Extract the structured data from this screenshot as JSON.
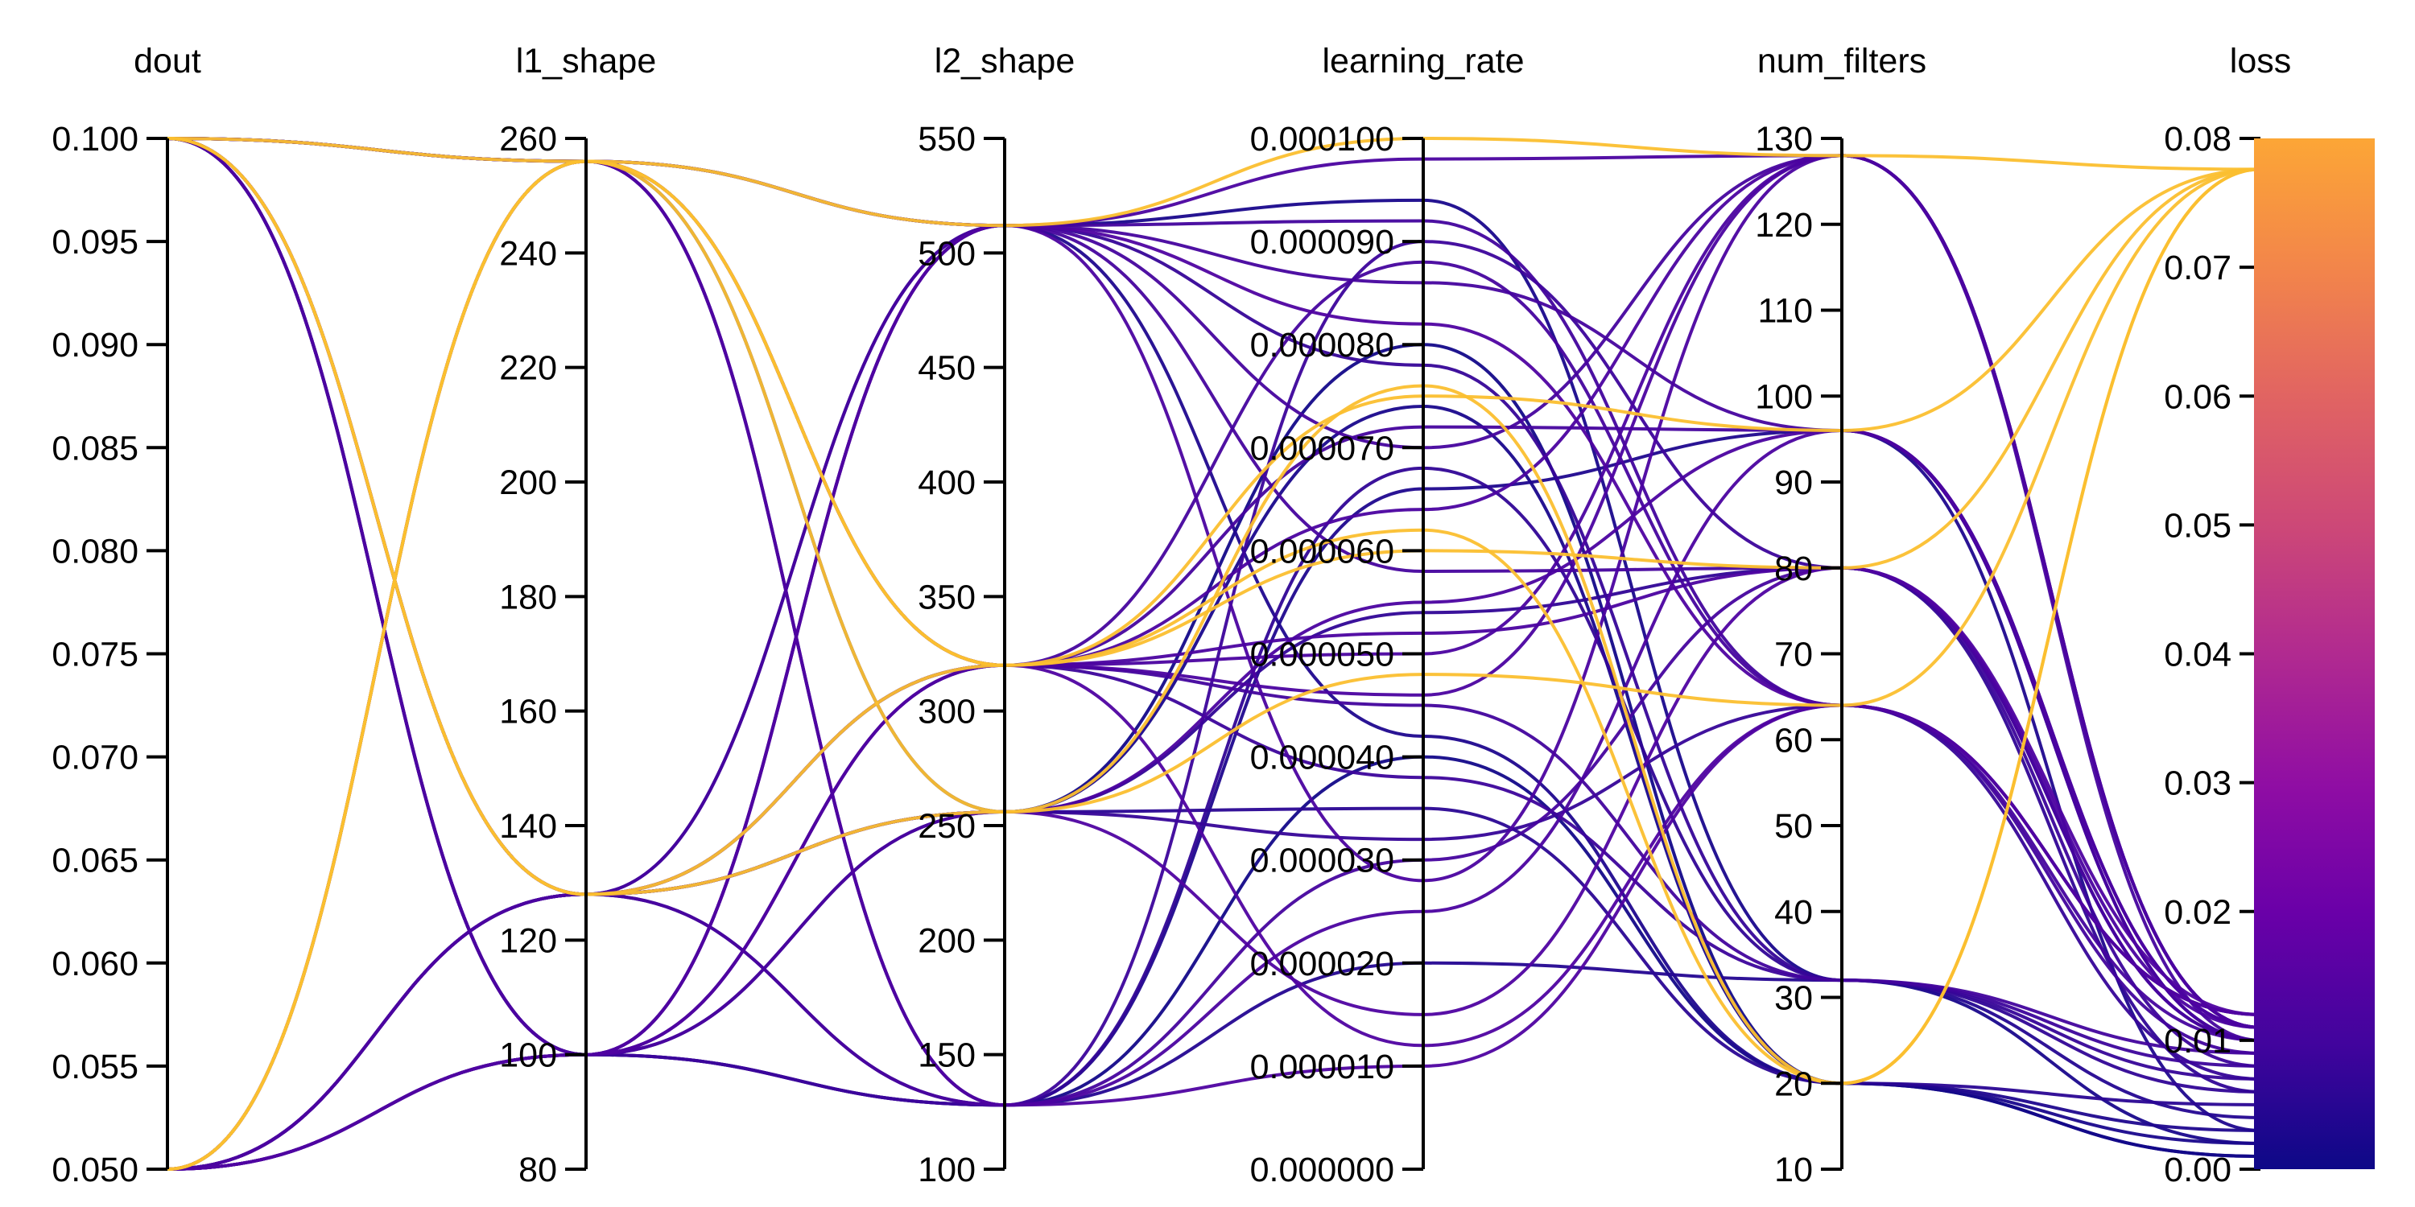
{
  "chart_data": {
    "type": "parallel_coordinates",
    "axes": [
      {
        "name": "dout",
        "ticks": [
          "0.050",
          "0.055",
          "0.060",
          "0.065",
          "0.070",
          "0.075",
          "0.080",
          "0.085",
          "0.090",
          "0.095",
          "0.100"
        ],
        "range": [
          0.05,
          0.1
        ]
      },
      {
        "name": "l1_shape",
        "ticks": [
          "80",
          "100",
          "120",
          "140",
          "160",
          "180",
          "200",
          "220",
          "240",
          "260"
        ],
        "range": [
          80,
          260
        ]
      },
      {
        "name": "l2_shape",
        "ticks": [
          "100",
          "150",
          "200",
          "250",
          "300",
          "350",
          "400",
          "450",
          "500",
          "550"
        ],
        "range": [
          100,
          550
        ]
      },
      {
        "name": "learning_rate",
        "ticks": [
          "0.000000",
          "0.000010",
          "0.000020",
          "0.000030",
          "0.000040",
          "0.000050",
          "0.000060",
          "0.000070",
          "0.000080",
          "0.000090",
          "0.000100"
        ],
        "range": [
          0,
          0.0001
        ]
      },
      {
        "name": "num_filters",
        "ticks": [
          "10",
          "20",
          "30",
          "40",
          "50",
          "60",
          "70",
          "80",
          "90",
          "100",
          "110",
          "120",
          "130"
        ],
        "range": [
          10,
          130
        ]
      },
      {
        "name": "loss",
        "ticks": [
          "0.00",
          "0.01",
          "0.02",
          "0.03",
          "0.04",
          "0.05",
          "0.06",
          "0.07",
          "0.08"
        ],
        "range": [
          0,
          0.08
        ]
      }
    ],
    "colorbar": {
      "range": [
        0,
        0.08
      ],
      "colormap": "plasma"
    },
    "records": [
      {
        "values": [
          0.1,
          256,
          512,
          0.0001,
          128,
          0.0776
        ]
      },
      {
        "values": [
          0.05,
          256,
          320,
          7.5e-05,
          96,
          0.0776
        ]
      },
      {
        "values": [
          0.1,
          128,
          320,
          6e-05,
          80,
          0.0776
        ]
      },
      {
        "values": [
          0.05,
          256,
          256,
          4.8e-05,
          64,
          0.0776
        ]
      },
      {
        "values": [
          0.1,
          128,
          256,
          7.6e-05,
          20,
          0.0776
        ]
      },
      {
        "values": [
          0.05,
          256,
          320,
          6.2e-05,
          20,
          0.0776
        ]
      },
      {
        "values": [
          0.1,
          256,
          512,
          9.8e-05,
          128,
          0.011
        ]
      },
      {
        "values": [
          0.05,
          128,
          320,
          7.2e-05,
          96,
          0.01
        ]
      },
      {
        "values": [
          0.1,
          100,
          128,
          9e-05,
          80,
          0.008
        ]
      },
      {
        "values": [
          0.05,
          100,
          512,
          8.2e-05,
          64,
          0.012
        ]
      },
      {
        "values": [
          0.1,
          256,
          320,
          4.5e-05,
          32,
          0.009
        ]
      },
      {
        "values": [
          0.05,
          128,
          256,
          3.5e-05,
          20,
          0.005
        ]
      },
      {
        "values": [
          0.1,
          100,
          512,
          2.8e-05,
          128,
          0.011
        ]
      },
      {
        "values": [
          0.05,
          256,
          128,
          6.6e-05,
          96,
          0.003
        ]
      },
      {
        "values": [
          0.1,
          128,
          256,
          5.4e-05,
          80,
          0.006
        ]
      },
      {
        "values": [
          0.05,
          100,
          320,
          1.2e-05,
          64,
          0.012
        ]
      },
      {
        "values": [
          0.1,
          256,
          512,
          9.4e-05,
          32,
          0.002
        ]
      },
      {
        "values": [
          0.05,
          128,
          128,
          4e-05,
          20,
          0.001
        ]
      },
      {
        "values": [
          0.1,
          100,
          512,
          7e-05,
          128,
          0.01
        ]
      },
      {
        "values": [
          0.05,
          256,
          320,
          5.2e-05,
          80,
          0.011
        ]
      },
      {
        "values": [
          0.1,
          128,
          256,
          3.2e-05,
          64,
          0.007
        ]
      },
      {
        "values": [
          0.05,
          100,
          128,
          2e-05,
          32,
          0.004
        ]
      },
      {
        "values": [
          0.1,
          256,
          512,
          8.6e-05,
          96,
          0.01
        ]
      },
      {
        "values": [
          0.05,
          128,
          320,
          4.6e-05,
          128,
          0.011
        ]
      },
      {
        "values": [
          0.1,
          100,
          256,
          7.4e-05,
          20,
          0.002
        ]
      },
      {
        "values": [
          0.05,
          256,
          128,
          1e-05,
          64,
          0.012
        ]
      },
      {
        "values": [
          0.1,
          128,
          512,
          5.8e-05,
          80,
          0.01
        ]
      },
      {
        "values": [
          0.05,
          100,
          320,
          3.8e-05,
          32,
          0.008
        ]
      },
      {
        "values": [
          0.1,
          256,
          256,
          8e-05,
          20,
          0.001
        ]
      },
      {
        "values": [
          0.05,
          128,
          128,
          2.5e-05,
          96,
          0.011
        ]
      },
      {
        "values": [
          0.1,
          100,
          512,
          9.2e-05,
          64,
          0.009
        ]
      },
      {
        "values": [
          0.05,
          256,
          320,
          5e-05,
          128,
          0.011
        ]
      },
      {
        "values": [
          0.1,
          128,
          256,
          1.5e-05,
          80,
          0.012
        ]
      },
      {
        "values": [
          0.05,
          100,
          128,
          6.8e-05,
          32,
          0.006
        ]
      },
      {
        "values": [
          0.1,
          256,
          512,
          4.2e-05,
          20,
          0.003
        ]
      },
      {
        "values": [
          0.05,
          128,
          320,
          8.8e-05,
          64,
          0.01
        ]
      },
      {
        "values": [
          0.1,
          100,
          256,
          5.5e-05,
          96,
          0.011
        ]
      },
      {
        "values": [
          0.05,
          256,
          128,
          3e-05,
          80,
          0.01
        ]
      },
      {
        "values": [
          0.1,
          128,
          512,
          7.8e-05,
          32,
          0.007
        ]
      },
      {
        "values": [
          0.05,
          100,
          320,
          6.4e-05,
          128,
          0.011
        ]
      }
    ]
  }
}
